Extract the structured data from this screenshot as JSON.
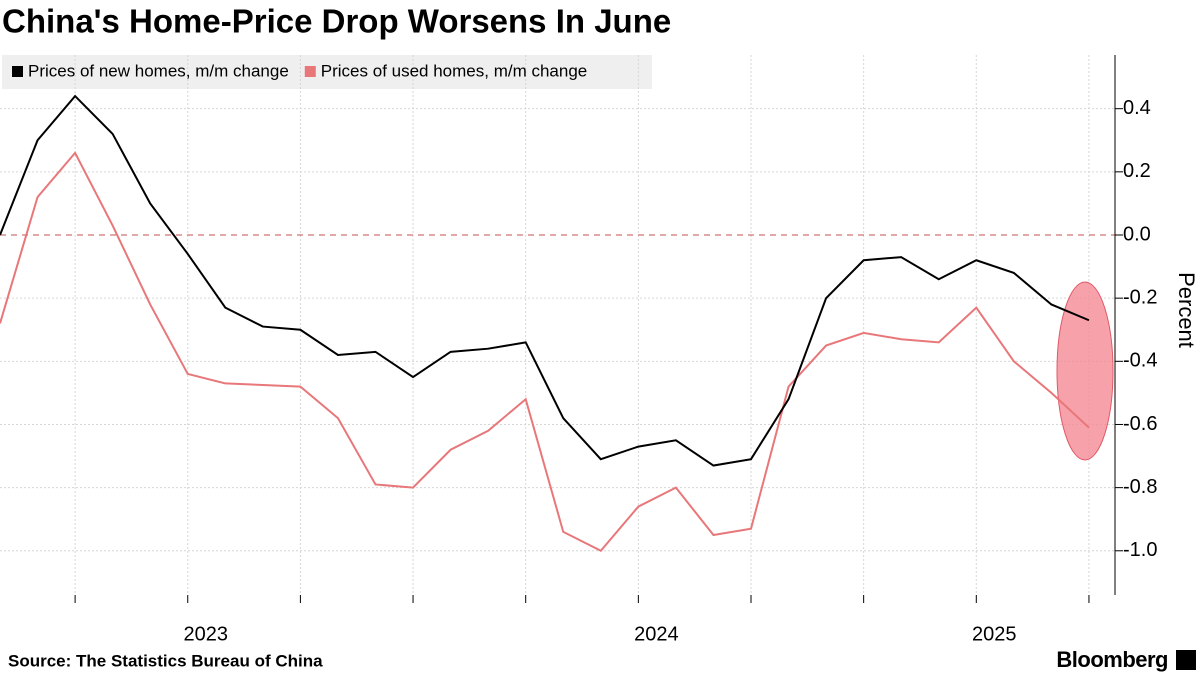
{
  "chart_data": {
    "type": "line",
    "title": "China's Home-Price Drop Worsens In June",
    "y_label": "Percent",
    "source": "Source: The Statistics Bureau of China",
    "brand": "Bloomberg",
    "categories": [
      null,
      null,
      null,
      null,
      null,
      "2023",
      null,
      null,
      null,
      null,
      null,
      null,
      null,
      null,
      null,
      null,
      null,
      "2024",
      null,
      null,
      null,
      null,
      null,
      null,
      null,
      null,
      "2025",
      null,
      null,
      null
    ],
    "series": [
      {
        "name": "Prices of new homes, m/m change",
        "color": "#000000",
        "values": [
          0.0,
          0.3,
          0.44,
          0.32,
          0.1,
          -0.06,
          -0.23,
          -0.29,
          -0.3,
          -0.38,
          -0.37,
          -0.45,
          -0.37,
          -0.36,
          -0.34,
          -0.58,
          -0.71,
          -0.67,
          -0.65,
          -0.73,
          -0.71,
          -0.52,
          -0.2,
          -0.08,
          -0.07,
          -0.14,
          -0.08,
          -0.12,
          -0.22,
          -0.27
        ]
      },
      {
        "name": "Prices of used homes, m/m change",
        "color": "#e8777a",
        "values": [
          -0.28,
          0.12,
          0.26,
          0.03,
          -0.22,
          -0.44,
          -0.47,
          -0.475,
          -0.48,
          -0.58,
          -0.79,
          -0.8,
          -0.68,
          -0.62,
          -0.52,
          -0.94,
          -1.0,
          -0.86,
          -0.8,
          -0.95,
          -0.93,
          -0.48,
          -0.35,
          -0.31,
          -0.33,
          -0.34,
          -0.23,
          -0.4,
          -0.5,
          -0.61
        ]
      }
    ],
    "ylim": [
      -1.14,
      0.57
    ],
    "yticks": [
      0.4,
      0.2,
      {
        "value": 0,
        "label": "0.0"
      },
      -0.2,
      -0.4,
      -0.6,
      -0.8,
      {
        "value": -1,
        "label": "-1.0"
      }
    ],
    "grid": true
  }
}
